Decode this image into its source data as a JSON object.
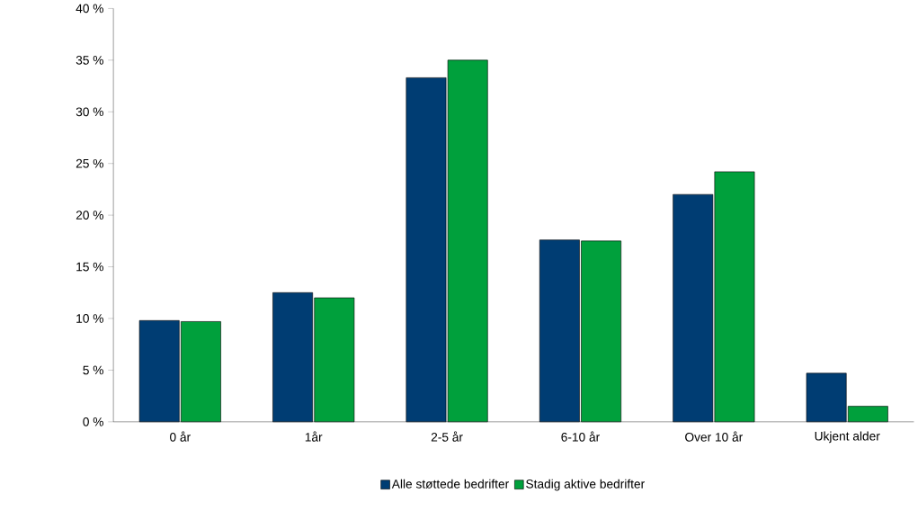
{
  "chart_data": {
    "type": "bar",
    "categories": [
      "0 år",
      "1år",
      "2-5 år",
      "6-10 år",
      "Over 10 år",
      "Ukjent alder"
    ],
    "series": [
      {
        "name": "Alle støttede bedrifter",
        "color": "#003d73",
        "values": [
          9.8,
          12.5,
          33.3,
          17.6,
          22.0,
          4.7
        ]
      },
      {
        "name": "Stadig aktive bedrifter",
        "color": "#00a03c",
        "values": [
          9.7,
          12.0,
          35.0,
          17.5,
          24.2,
          1.5
        ]
      }
    ],
    "ylim": [
      0,
      40
    ],
    "yticks": [
      {
        "value": 0,
        "label": "0 %"
      },
      {
        "value": 5,
        "label": "5 %"
      },
      {
        "value": 10,
        "label": "10 %"
      },
      {
        "value": 15,
        "label": "15 %"
      },
      {
        "value": 20,
        "label": "20 %"
      },
      {
        "value": 25,
        "label": "25 %"
      },
      {
        "value": 30,
        "label": "30 %"
      },
      {
        "value": 35,
        "label": "35 %"
      },
      {
        "value": 40,
        "label": "40 %"
      }
    ],
    "grid": false,
    "legend": "bottom"
  }
}
